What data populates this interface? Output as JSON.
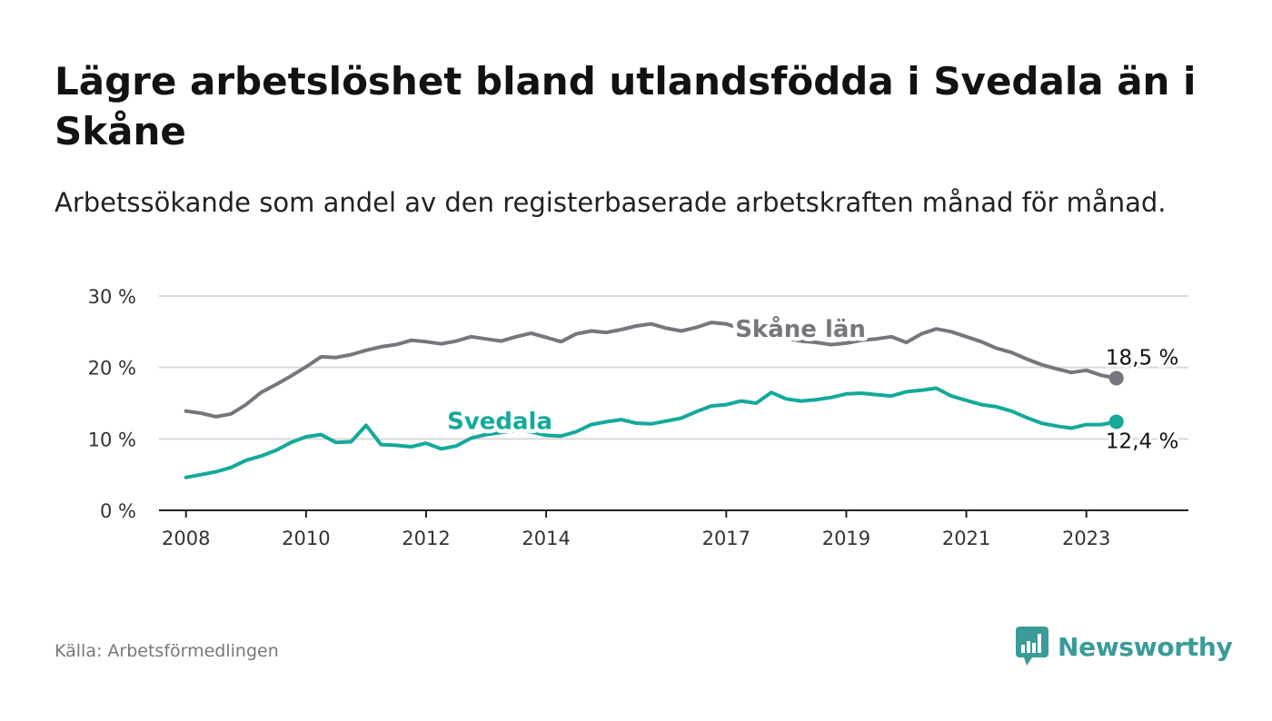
{
  "title": "Lägre arbetslöshet bland utlandsfödda i Svedala än i Skåne",
  "subtitle": "Arbetssökande som andel av den registerbaserade arbetskraften månad för månad.",
  "source": "Källa: Arbetsförmedlingen",
  "brand": "Newsworthy",
  "colors": {
    "skane": "#77757d",
    "svedala": "#14a99b",
    "grid": "#d9d9d9",
    "axis": "#222222",
    "brand": "#3a9b98"
  },
  "chart_data": {
    "type": "line",
    "x_unit": "decimal year",
    "xlim": [
      2007.55,
      2024.7
    ],
    "ylim": [
      0,
      30
    ],
    "yticks": [
      0,
      10,
      20,
      30
    ],
    "ytick_labels": [
      "0 %",
      "10 %",
      "20 %",
      "30 %"
    ],
    "xticks": [
      2008,
      2010,
      2012,
      2014,
      2017,
      2019,
      2021,
      2023
    ],
    "xtick_labels": [
      "2008",
      "2010",
      "2012",
      "2014",
      "2017",
      "2019",
      "2021",
      "2023"
    ],
    "series": [
      {
        "name": "Skåne län",
        "label": "Skåne län",
        "end_label": "18,5 %",
        "x": [
          2008.0,
          2008.25,
          2008.5,
          2008.75,
          2009.0,
          2009.25,
          2009.5,
          2009.75,
          2010.0,
          2010.25,
          2010.5,
          2010.75,
          2011.0,
          2011.25,
          2011.5,
          2011.75,
          2012.0,
          2012.25,
          2012.5,
          2012.75,
          2013.0,
          2013.25,
          2013.5,
          2013.75,
          2014.0,
          2014.25,
          2014.5,
          2014.75,
          2015.0,
          2015.25,
          2015.5,
          2015.75,
          2016.0,
          2016.25,
          2016.5,
          2016.75,
          2017.0,
          2017.25,
          2017.5,
          2017.75,
          2018.0,
          2018.25,
          2018.5,
          2018.75,
          2019.0,
          2019.25,
          2019.5,
          2019.75,
          2020.0,
          2020.25,
          2020.5,
          2020.75,
          2021.0,
          2021.25,
          2021.5,
          2021.75,
          2022.0,
          2022.25,
          2022.5,
          2022.75,
          2023.0,
          2023.25,
          2023.5
        ],
        "values": [
          13.9,
          13.6,
          13.1,
          13.5,
          14.8,
          16.5,
          17.6,
          18.8,
          20.1,
          21.5,
          21.4,
          21.8,
          22.4,
          22.9,
          23.2,
          23.8,
          23.6,
          23.3,
          23.7,
          24.3,
          24.0,
          23.7,
          24.3,
          24.8,
          24.2,
          23.6,
          24.7,
          25.1,
          24.9,
          25.3,
          25.8,
          26.1,
          25.5,
          25.1,
          25.6,
          26.3,
          26.1,
          25.4,
          24.9,
          24.4,
          24.1,
          23.7,
          23.5,
          23.2,
          23.4,
          23.8,
          24.0,
          24.3,
          23.5,
          24.7,
          25.4,
          25.0,
          24.3,
          23.6,
          22.7,
          22.1,
          21.2,
          20.4,
          19.8,
          19.3,
          19.6,
          18.9,
          18.5
        ]
      },
      {
        "name": "Svedala",
        "label": "Svedala",
        "end_label": "12,4 %",
        "x": [
          2008.0,
          2008.25,
          2008.5,
          2008.75,
          2009.0,
          2009.25,
          2009.5,
          2009.75,
          2010.0,
          2010.25,
          2010.5,
          2010.75,
          2011.0,
          2011.25,
          2011.5,
          2011.75,
          2012.0,
          2012.25,
          2012.5,
          2012.75,
          2013.0,
          2013.25,
          2013.5,
          2013.75,
          2014.0,
          2014.25,
          2014.5,
          2014.75,
          2015.0,
          2015.25,
          2015.5,
          2015.75,
          2016.0,
          2016.25,
          2016.5,
          2016.75,
          2017.0,
          2017.25,
          2017.5,
          2017.75,
          2018.0,
          2018.25,
          2018.5,
          2018.75,
          2019.0,
          2019.25,
          2019.5,
          2019.75,
          2020.0,
          2020.25,
          2020.5,
          2020.75,
          2021.0,
          2021.25,
          2021.5,
          2021.75,
          2022.0,
          2022.25,
          2022.5,
          2022.75,
          2023.0,
          2023.25,
          2023.5
        ],
        "values": [
          4.6,
          5.0,
          5.4,
          6.0,
          7.0,
          7.6,
          8.4,
          9.5,
          10.3,
          10.6,
          9.5,
          9.6,
          11.9,
          9.2,
          9.1,
          8.9,
          9.4,
          8.6,
          9.0,
          10.1,
          10.6,
          10.9,
          11.2,
          11.0,
          10.5,
          10.4,
          11.0,
          12.0,
          12.4,
          12.7,
          12.2,
          12.1,
          12.5,
          12.9,
          13.8,
          14.6,
          14.8,
          15.3,
          15.0,
          16.5,
          15.6,
          15.3,
          15.5,
          15.8,
          16.3,
          16.4,
          16.2,
          16.0,
          16.6,
          16.8,
          17.1,
          16.0,
          15.4,
          14.8,
          14.5,
          13.9,
          13.0,
          12.2,
          11.8,
          11.5,
          12.0,
          12.0,
          12.4
        ]
      }
    ]
  }
}
